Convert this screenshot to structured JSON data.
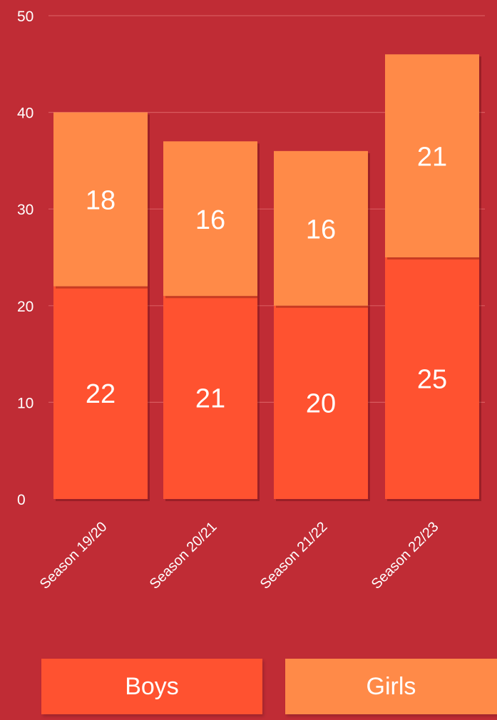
{
  "chart_data": {
    "type": "bar",
    "stacked": true,
    "categories": [
      "Season 19/20",
      "Season 20/21",
      "Season 21/22",
      "Season 22/23"
    ],
    "series": [
      {
        "name": "Boys",
        "values": [
          22,
          21,
          20,
          25
        ],
        "color": "#ff5230"
      },
      {
        "name": "Girls",
        "values": [
          18,
          16,
          16,
          21
        ],
        "color": "#ff8a48"
      }
    ],
    "ylim": [
      0,
      50
    ],
    "yticks": [
      0,
      10,
      20,
      30,
      40,
      50
    ],
    "grid": true,
    "legend_position": "bottom"
  },
  "colors": {
    "background": "#c02c35",
    "grid": "#d85a5e",
    "text": "#ffffff"
  },
  "legend": {
    "boys_label": "Boys",
    "girls_label": "Girls"
  }
}
